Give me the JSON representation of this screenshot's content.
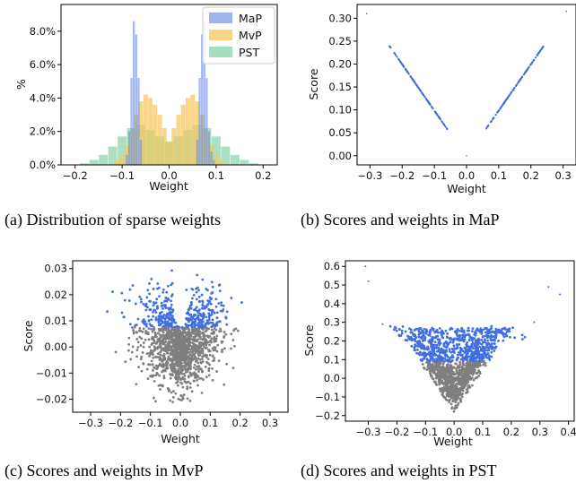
{
  "chart_data": [
    {
      "type": "histogram",
      "caption": "(a) Distribution of sparse weights",
      "xlabel": "Weight",
      "ylabel": "%",
      "xlim": [
        -0.23,
        0.23
      ],
      "ylim": [
        0,
        9.6
      ],
      "xticks": [
        "−0.2",
        "−0.1",
        "0.0",
        "0.1",
        "0.2"
      ],
      "xtick_values": [
        -0.2,
        -0.1,
        0.0,
        0.1,
        0.2
      ],
      "yticks": [
        "0.0%",
        "2.0%",
        "4.0%",
        "6.0%",
        "8.0%"
      ],
      "ytick_values": [
        0,
        2,
        4,
        6,
        8
      ],
      "legend_position": "top-right",
      "series": [
        {
          "name": "MaP",
          "color": "#6b8ee8",
          "x": [
            -0.09,
            -0.085,
            -0.08,
            -0.075,
            -0.07,
            -0.065,
            -0.06,
            0.06,
            0.065,
            0.07,
            0.075,
            0.08,
            0.085,
            0.09,
            0.095
          ],
          "values": [
            0.6,
            2.0,
            5.2,
            8.6,
            7.8,
            5.2,
            1.5,
            1.5,
            5.2,
            7.8,
            8.6,
            5.2,
            2.0,
            0.8,
            0.3
          ]
        },
        {
          "name": "MvP",
          "color": "#f7c65c",
          "x": [
            -0.11,
            -0.1,
            -0.09,
            -0.08,
            -0.07,
            -0.06,
            -0.05,
            -0.04,
            -0.03,
            -0.02,
            -0.01,
            0.0,
            0.01,
            0.02,
            0.03,
            0.04,
            0.05,
            0.06,
            0.07,
            0.08,
            0.09,
            0.1,
            0.11
          ],
          "values": [
            0.3,
            0.6,
            1.2,
            2.0,
            3.0,
            3.8,
            4.2,
            4.0,
            3.6,
            3.0,
            2.2,
            1.4,
            2.2,
            3.0,
            3.6,
            4.0,
            4.2,
            3.8,
            3.0,
            2.0,
            1.2,
            0.6,
            0.3
          ]
        },
        {
          "name": "PST",
          "color": "#7dcfa4",
          "x": [
            -0.18,
            -0.16,
            -0.14,
            -0.12,
            -0.1,
            -0.08,
            -0.06,
            -0.04,
            -0.02,
            0.0,
            0.02,
            0.04,
            0.06,
            0.08,
            0.1,
            0.12,
            0.14,
            0.16,
            0.18
          ],
          "values": [
            0.1,
            0.3,
            0.6,
            1.1,
            1.7,
            2.2,
            2.4,
            2.1,
            1.7,
            1.4,
            1.7,
            2.1,
            2.4,
            2.2,
            1.7,
            1.1,
            0.6,
            0.3,
            0.1
          ]
        }
      ]
    },
    {
      "type": "scatter",
      "caption": "(b) Scores and weights in MaP",
      "xlabel": "Weight",
      "ylabel": "Score",
      "xlim": [
        -0.34,
        0.34
      ],
      "ylim": [
        -0.02,
        0.33
      ],
      "xticks": [
        "−0.3",
        "−0.2",
        "−0.1",
        "0.0",
        "0.1",
        "0.2",
        "0.3"
      ],
      "xtick_values": [
        -0.3,
        -0.2,
        -0.1,
        0.0,
        0.1,
        0.2,
        0.3
      ],
      "yticks": [
        "0.00",
        "0.05",
        "0.10",
        "0.15",
        "0.20",
        "0.25",
        "0.30"
      ],
      "ytick_values": [
        0,
        0.05,
        0.1,
        0.15,
        0.2,
        0.25,
        0.3
      ],
      "color": "#3f6fe0",
      "description_values": {
        "left_branch": [
          [
            -0.24,
            0.24
          ],
          [
            -0.06,
            0.058
          ]
        ],
        "right_branch": [
          [
            0.06,
            0.058
          ],
          [
            0.24,
            0.24
          ]
        ],
        "outliers": [
          [
            -0.31,
            0.31
          ],
          [
            0.31,
            0.315
          ],
          [
            0.0,
            0.0
          ]
        ]
      }
    },
    {
      "type": "scatter",
      "caption": "(c) Scores and weights in MvP",
      "xlabel": "Weight",
      "ylabel": "Score",
      "xlim": [
        -0.36,
        0.36
      ],
      "ylim": [
        -0.025,
        0.033
      ],
      "xticks": [
        "−0.3",
        "−0.2",
        "−0.1",
        "0.0",
        "0.1",
        "0.2",
        "0.3"
      ],
      "xtick_values": [
        -0.3,
        -0.2,
        -0.1,
        0.0,
        0.1,
        0.2,
        0.3
      ],
      "yticks": [
        "−0.02",
        "−0.01",
        "0.00",
        "0.01",
        "0.02",
        "0.03"
      ],
      "ytick_values": [
        -0.02,
        -0.01,
        0.0,
        0.01,
        0.02,
        0.03
      ],
      "threshold": 0.0075,
      "kept_color": "#3f6fe0",
      "pruned_color": "#7f7f7f"
    },
    {
      "type": "scatter",
      "caption": "(d) Scores and weights in PST",
      "xlabel": "Weight",
      "ylabel": "Score",
      "xlim": [
        -0.38,
        0.42
      ],
      "ylim": [
        -0.23,
        0.63
      ],
      "xticks": [
        "−0.3",
        "−0.2",
        "−0.1",
        "0.0",
        "0.1",
        "0.2",
        "0.3",
        "0.4"
      ],
      "xtick_values": [
        -0.3,
        -0.2,
        -0.1,
        0.0,
        0.1,
        0.2,
        0.3,
        0.4
      ],
      "yticks": [
        "−0.2",
        "−0.1",
        "0.0",
        "0.1",
        "0.2",
        "0.3",
        "0.4",
        "0.5",
        "0.6"
      ],
      "ytick_values": [
        -0.2,
        -0.1,
        0.0,
        0.1,
        0.2,
        0.3,
        0.4,
        0.5,
        0.6
      ],
      "threshold": 0.09,
      "kept_color": "#3f6fe0",
      "pruned_color": "#7f7f7f"
    }
  ]
}
